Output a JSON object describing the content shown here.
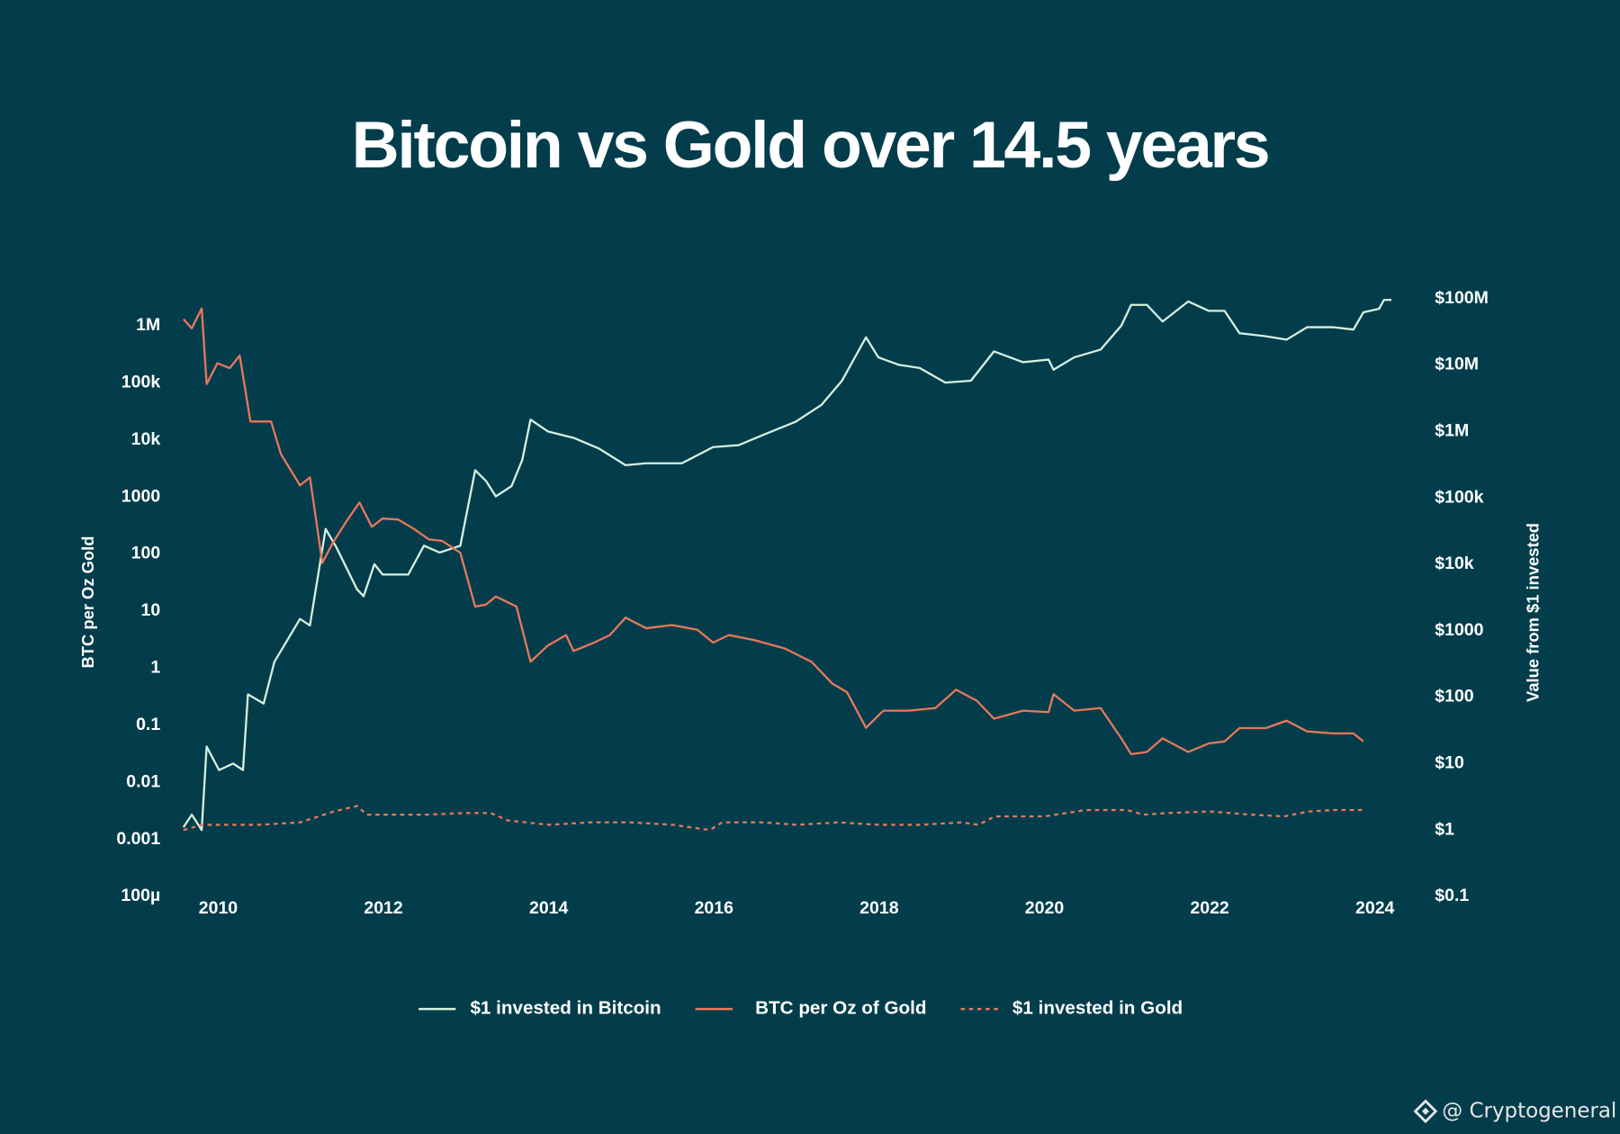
{
  "chart_data": {
    "type": "line",
    "title": "Bitcoin vs Gold over 14.5 years",
    "y_label": "BTC per Oz Gold",
    "y2_label": "Value from $1 invested",
    "watermark": "@ Cryptogeneral",
    "log_scale": true,
    "grid": false,
    "xlim": [
      2009.5,
      2024.3
    ],
    "xticks": [
      2010,
      2012,
      2014,
      2016,
      2018,
      2020,
      2022,
      2024
    ],
    "ylim": [
      0.0001,
      3000000
    ],
    "yticks": [
      {
        "value": 1000000,
        "label": "1M"
      },
      {
        "value": 100000,
        "label": "100k"
      },
      {
        "value": 10000,
        "label": "10k"
      },
      1000,
      100,
      10,
      1,
      0.1,
      0.01,
      0.001,
      {
        "value": 0.0001,
        "label": "100µ"
      }
    ],
    "y2lim": [
      0.1,
      100000000
    ],
    "y2ticks": [
      {
        "value": 100000000,
        "label": "$100M"
      },
      {
        "value": 10000000,
        "label": "$10M"
      },
      {
        "value": 1000000,
        "label": "$1M"
      },
      {
        "value": 100000,
        "label": "$100k"
      },
      {
        "value": 10000,
        "label": "$10k"
      },
      {
        "value": 1000,
        "label": "$1000"
      },
      {
        "value": 100,
        "label": "$100"
      },
      {
        "value": 10,
        "label": "$10"
      },
      {
        "value": 1,
        "label": "$1"
      },
      {
        "value": 0.1,
        "label": "$0.1"
      }
    ],
    "series": [
      {
        "name": "$1 invested in Bitcoin",
        "color": "#d6f0e0",
        "axis": "y2",
        "line_style": "solid",
        "x": [
          2009.58,
          2009.68,
          2009.8,
          2009.86,
          2010.01,
          2010.18,
          2010.3,
          2010.36,
          2010.55,
          2010.68,
          2010.99,
          2011.11,
          2011.3,
          2011.43,
          2011.68,
          2011.76,
          2011.89,
          2011.99,
          2012.3,
          2012.49,
          2012.68,
          2012.93,
          2013.11,
          2013.24,
          2013.36,
          2013.55,
          2013.68,
          2013.78,
          2013.99,
          2014.3,
          2014.61,
          2014.93,
          2015.18,
          2015.61,
          2015.99,
          2016.3,
          2016.61,
          2016.99,
          2017.3,
          2017.55,
          2017.84,
          2017.99,
          2018.24,
          2018.49,
          2018.8,
          2019.11,
          2019.39,
          2019.74,
          2020.05,
          2020.11,
          2020.36,
          2020.68,
          2020.93,
          2021.05,
          2021.24,
          2021.43,
          2021.74,
          2021.99,
          2022.18,
          2022.36,
          2022.68,
          2022.93,
          2023.18,
          2023.49,
          2023.74,
          2023.86,
          2024.05,
          2024.11,
          2024.2
        ],
        "values": [
          1.1,
          1.7,
          1,
          18,
          8,
          10,
          8,
          110,
          80,
          340,
          1500,
          1200,
          34000,
          18000,
          4200,
          3300,
          10000,
          7000,
          7000,
          19000,
          15000,
          19000,
          260000,
          180000,
          105000,
          150000,
          370000,
          1500000,
          1000000,
          800000,
          550000,
          310000,
          330000,
          330000,
          580000,
          620000,
          900000,
          1400000,
          2500000,
          5800000,
          26000000,
          13000000,
          10000000,
          9000000,
          5400000,
          5800000,
          16000000,
          11000000,
          12000000,
          8500000,
          13000000,
          17000000,
          39000000,
          80000000,
          80000000,
          45000000,
          90000000,
          65000000,
          65000000,
          30000000,
          27000000,
          24000000,
          37000000,
          37000000,
          34000000,
          62000000,
          70000000,
          95000000,
          95000000
        ]
      },
      {
        "name": "BTC per Oz of Gold",
        "color": "#e8785a",
        "axis": "y",
        "line_style": "solid",
        "x": [
          2009.58,
          2009.68,
          2009.8,
          2009.86,
          2009.99,
          2010.14,
          2010.26,
          2010.39,
          2010.64,
          2010.76,
          2010.99,
          2011.11,
          2011.26,
          2011.39,
          2011.55,
          2011.71,
          2011.86,
          2011.99,
          2012.18,
          2012.36,
          2012.55,
          2012.71,
          2012.93,
          2013.11,
          2013.24,
          2013.36,
          2013.61,
          2013.78,
          2013.99,
          2014.21,
          2014.3,
          2014.55,
          2014.74,
          2014.93,
          2015.18,
          2015.49,
          2015.8,
          2015.99,
          2016.18,
          2016.49,
          2016.86,
          2017.18,
          2017.43,
          2017.61,
          2017.84,
          2018.05,
          2018.36,
          2018.68,
          2018.93,
          2019.18,
          2019.39,
          2019.74,
          2020.05,
          2020.11,
          2020.36,
          2020.68,
          2020.93,
          2021.05,
          2021.24,
          2021.43,
          2021.74,
          2021.99,
          2022.18,
          2022.36,
          2022.68,
          2022.93,
          2023.18,
          2023.49,
          2023.74,
          2023.86
        ],
        "values": [
          1300000,
          900000,
          2000000,
          95000,
          220000,
          180000,
          300000,
          21000,
          21000,
          5600,
          1600,
          2200,
          70,
          160,
          370,
          800,
          300,
          420,
          400,
          280,
          180,
          170,
          105,
          12,
          13,
          18,
          12,
          1.3,
          2.5,
          3.8,
          2,
          2.8,
          3.8,
          7.7,
          5,
          5.7,
          4.7,
          2.8,
          3.8,
          3.1,
          2.2,
          1.3,
          0.54,
          0.38,
          0.09,
          0.18,
          0.18,
          0.2,
          0.42,
          0.27,
          0.13,
          0.18,
          0.17,
          0.35,
          0.18,
          0.2,
          0.059,
          0.031,
          0.034,
          0.059,
          0.034,
          0.048,
          0.052,
          0.089,
          0.089,
          0.12,
          0.078,
          0.072,
          0.072,
          0.052
        ]
      },
      {
        "name": "$1 invested in Gold",
        "color": "#e8785a",
        "axis": "y2",
        "line_style": "dashed",
        "x": [
          2009.58,
          2009.8,
          2010.5,
          2010.99,
          2011.4,
          2011.68,
          2011.8,
          2012.5,
          2013.0,
          2013.3,
          2013.5,
          2014.0,
          2014.5,
          2015.0,
          2015.5,
          2015.95,
          2016.1,
          2016.6,
          2017.0,
          2017.5,
          2018.0,
          2018.5,
          2019.0,
          2019.2,
          2019.4,
          2020.0,
          2020.5,
          2021.0,
          2021.2,
          2021.5,
          2022.0,
          2022.5,
          2022.9,
          2023.2,
          2023.5,
          2023.86
        ],
        "values": [
          1.0,
          1.2,
          1.2,
          1.3,
          1.9,
          2.3,
          1.7,
          1.7,
          1.8,
          1.8,
          1.4,
          1.2,
          1.3,
          1.3,
          1.2,
          1.0,
          1.3,
          1.3,
          1.2,
          1.3,
          1.2,
          1.2,
          1.3,
          1.2,
          1.6,
          1.6,
          2.0,
          2.0,
          1.7,
          1.8,
          1.9,
          1.7,
          1.6,
          1.9,
          2.0,
          2.0
        ]
      }
    ]
  }
}
